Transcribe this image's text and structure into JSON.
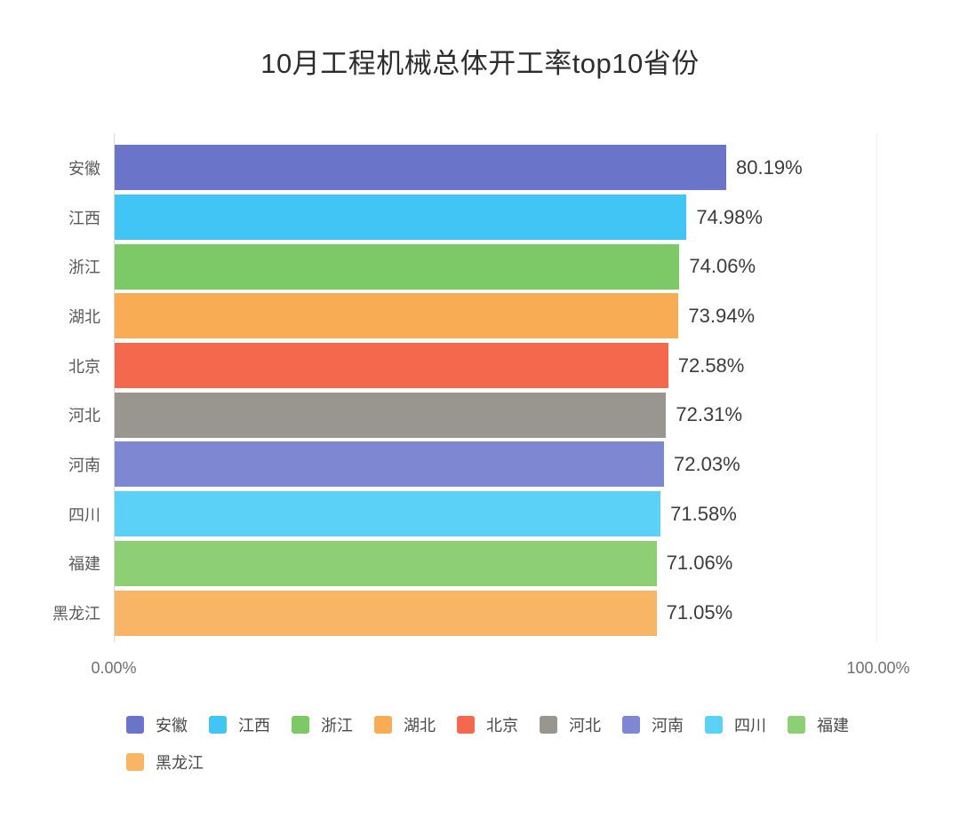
{
  "chart_data": {
    "type": "bar",
    "orientation": "horizontal",
    "title": "10月工程机械总体开工率top10省份",
    "categories": [
      "安徽",
      "江西",
      "浙江",
      "湖北",
      "北京",
      "河北",
      "河南",
      "四川",
      "福建",
      "黑龙江"
    ],
    "values": [
      80.19,
      74.98,
      74.06,
      73.94,
      72.58,
      72.31,
      72.03,
      71.58,
      71.06,
      71.05
    ],
    "value_labels": [
      "80.19%",
      "74.98%",
      "74.06%",
      "73.94%",
      "72.58%",
      "72.31%",
      "72.03%",
      "71.58%",
      "71.06%",
      "71.05%"
    ],
    "bar_colors": [
      "#6a74c8",
      "#41c5f4",
      "#7ec967",
      "#f8ad54",
      "#f4694d",
      "#999690",
      "#7e87d1",
      "#5cd1f8",
      "#8ccf75",
      "#f9b566"
    ],
    "xlabel": "",
    "ylabel": "",
    "xlim": [
      0,
      100
    ],
    "x_ticks": [
      "0.00%",
      "100.00%"
    ],
    "grid": "right-boundary-line-only",
    "legend_position": "bottom",
    "legend_labels": [
      "安徽",
      "江西",
      "浙江",
      "湖北",
      "北京",
      "河北",
      "河南",
      "四川",
      "福建",
      "黑龙江"
    ]
  },
  "colors": {
    "background": "#ffffff",
    "axis_line": "#d9d9d9",
    "grid_line": "#eeeeee",
    "title_text": "#2d2d2d",
    "value_text": "#3c3c3c",
    "y_label_text": "#595959",
    "x_tick_text": "#707070",
    "legend_text": "#4a4a4a"
  }
}
